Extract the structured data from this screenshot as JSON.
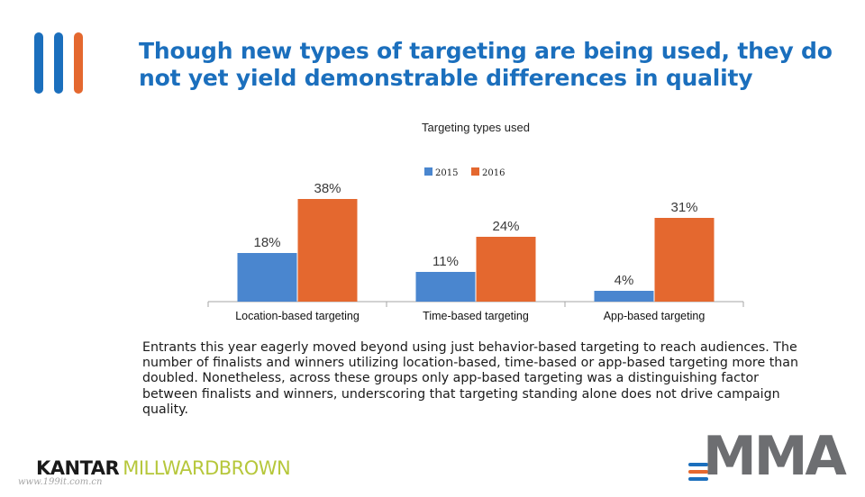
{
  "colors": {
    "title": "#1b6fbd",
    "series_2015": "#4a86cf",
    "series_2016": "#e4682f",
    "logo_blue": "#1b6fbd",
    "logo_orange": "#e4682f",
    "kantar_dark": "#1a1a1a",
    "kantar_green": "#b6c73b",
    "mma_gray": "#6d6e71"
  },
  "header": {
    "title": "Though new types of targeting are being used, they do not yet yield demonstrable differences in quality",
    "logo_icon": "three-vertical-bars-icon"
  },
  "chart_data": {
    "type": "bar",
    "title": "Targeting types used",
    "xlabel": "",
    "ylabel": "",
    "categories": [
      "Location-based targeting",
      "Time-based targeting",
      "App-based targeting"
    ],
    "series": [
      {
        "name": "2015",
        "values": [
          18,
          11,
          4
        ],
        "labels": [
          "18%",
          "11%",
          "4%"
        ]
      },
      {
        "name": "2016",
        "values": [
          38,
          24,
          31
        ],
        "labels": [
          "38%",
          "24%",
          "31%"
        ]
      }
    ],
    "ylim": [
      0,
      40
    ],
    "grid": false,
    "legend_position": "top"
  },
  "body": {
    "paragraph": "Entrants this year eagerly moved beyond using just behavior-based targeting to reach audiences. The number of finalists and winners utilizing location-based, time-based or app-based targeting more than doubled. Nonetheless, across these groups only app-based targeting was a distinguishing factor between finalists and winners, underscoring that targeting standing alone does not drive campaign quality."
  },
  "footer": {
    "kantar_part1": "KANTAR",
    "kantar_part2": "MILLWARDBROWN",
    "watermark": "www.199it.com.cn",
    "mma_logo": "MMA"
  }
}
